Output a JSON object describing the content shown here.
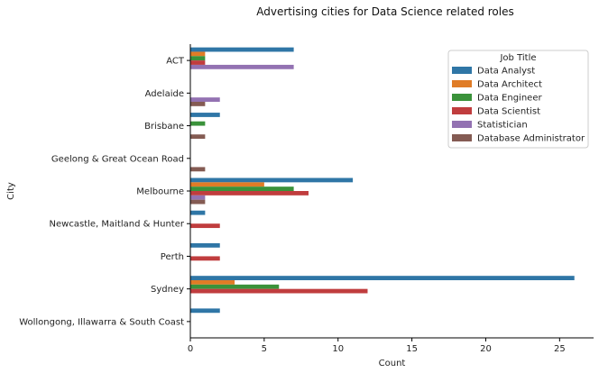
{
  "chart_data": {
    "type": "bar",
    "orientation": "horizontal",
    "title": "Advertising cities for Data Science related roles",
    "xlabel": "Count",
    "ylabel": "City",
    "xlim": [
      0,
      27.3
    ],
    "xticks": [
      0,
      5,
      10,
      15,
      20,
      25
    ],
    "grid": false,
    "legend": {
      "title": "Job Title",
      "placement": "top-right"
    },
    "categories": [
      "ACT",
      "Adelaide",
      "Brisbane",
      "Geelong & Great Ocean Road",
      "Melbourne",
      "Newcastle, Maitland & Hunter",
      "Perth",
      "Sydney",
      "Wollongong, Illawarra & South Coast"
    ],
    "series": [
      {
        "name": "Data Analyst",
        "color": "#2f76a6",
        "values": [
          7,
          0,
          2,
          0,
          11,
          1,
          2,
          26,
          2
        ]
      },
      {
        "name": "Data Architect",
        "color": "#e07c26",
        "values": [
          1,
          0,
          0,
          0,
          5,
          0,
          0,
          3,
          0
        ]
      },
      {
        "name": "Data Engineer",
        "color": "#3a923a",
        "values": [
          1,
          0,
          1,
          0,
          7,
          0,
          0,
          6,
          0
        ]
      },
      {
        "name": "Data Scientist",
        "color": "#c03d3e",
        "values": [
          1,
          0,
          0,
          0,
          8,
          2,
          2,
          12,
          0
        ]
      },
      {
        "name": "Statistician",
        "color": "#9372b2",
        "values": [
          7,
          2,
          0,
          0,
          1,
          0,
          0,
          0,
          0
        ]
      },
      {
        "name": "Database Administrator",
        "color": "#845b53",
        "values": [
          0,
          1,
          1,
          1,
          1,
          0,
          0,
          0,
          0
        ]
      }
    ]
  }
}
